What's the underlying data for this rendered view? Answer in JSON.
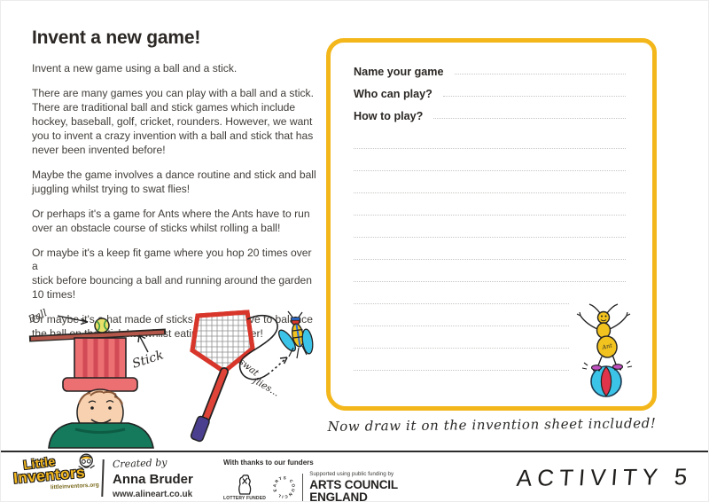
{
  "left": {
    "title": "Invent a new game!",
    "paragraphs": [
      "Invent a new game using a ball and a stick.",
      "There are many games you can play with a ball and a stick.\nThere are traditional ball and stick games which include\nhockey, baseball, golf, cricket, rounders. However, we want\nyou to invent a crazy invention with a ball and stick that has\nnever been invented before!",
      "Maybe the game involves a dance routine and stick and ball\njuggling whilst trying to swat flies!",
      "Or perhaps it's a game for Ants where the Ants have to run\nover an obstacle course of sticks whilst rolling a ball!",
      "Or maybe it's a keep fit game where you hop 20 times over a\nstick before bouncing a ball and running around the garden\n10 times!",
      "Or maybe it's a hat made of sticks and you have to balance\nthe ball on the stick hat whilst eating your dinner!"
    ]
  },
  "sheet": {
    "fields": [
      {
        "label": "Name your game"
      },
      {
        "label": "Who can play?"
      },
      {
        "label": "How to play?"
      }
    ],
    "ruled_lines": [
      "full",
      "full",
      "full",
      "full",
      "full",
      "full",
      "full",
      "short",
      "short",
      "short",
      "short"
    ],
    "caption": "Now draw it on the invention sheet included!"
  },
  "drawings": {
    "ball_label": "Ball",
    "stick_label": "Stick",
    "swat_label_word1": "swat",
    "swat_label_word2": "flies...",
    "ant_label": "Ant"
  },
  "footer": {
    "logo_word1": "Little",
    "logo_word2": "Inventors",
    "logo_site": "littleinventors.org",
    "created_by": "Created by",
    "author": "Anna Bruder",
    "website": "www.alineart.co.uk",
    "funders_heading": "With thanks to our funders",
    "lottery_label": "LOTTERY FUNDED",
    "arts_circle_text": "ARTS COUNCIL ENGLAND",
    "arts_support": "Supported using public funding by",
    "arts_line1": "ARTS COUNCIL",
    "arts_line2": "ENGLAND",
    "activity_label": "ACTIVITY 5"
  },
  "colors": {
    "accent_yellow": "#F3B71B",
    "text_dark": "#3A3632",
    "dotted_line": "#C6C6C4",
    "swatter_red": "#D8362A",
    "sweater_green": "#15795B",
    "skin": "#F8D2B0",
    "wing_cyan": "#3CC3E8",
    "ant_yellow": "#F2C31F",
    "shoe_purple": "#C050C0",
    "ball_red": "#E0344A"
  }
}
